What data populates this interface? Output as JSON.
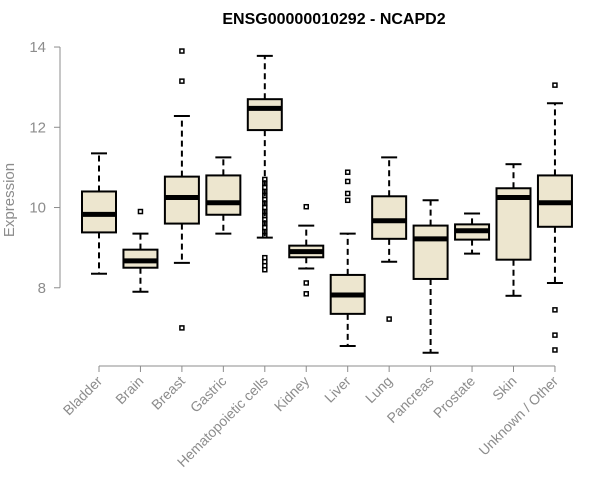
{
  "chart_data": {
    "type": "boxplot",
    "title": "ENSG00000010292 - NCAPD2",
    "xlabel": "",
    "ylabel": "Expression",
    "ylim": [
      6.2,
      14.2
    ],
    "yticks": [
      8,
      10,
      12,
      14
    ],
    "box_color": "#ede6cf",
    "categories": [
      "Bladder",
      "Brain",
      "Breast",
      "Gastric",
      "Hematopoietic cells",
      "Kidney",
      "Liver",
      "Lung",
      "Pancreas",
      "Prostate",
      "Skin",
      "Unknown / Other"
    ],
    "boxes": [
      {
        "name": "Bladder",
        "lower_whisker": 8.35,
        "q1": 9.38,
        "median": 9.83,
        "q3": 10.4,
        "upper_whisker": 11.35,
        "outliers": []
      },
      {
        "name": "Brain",
        "lower_whisker": 7.9,
        "q1": 8.5,
        "median": 8.67,
        "q3": 8.95,
        "upper_whisker": 9.35,
        "outliers": [
          9.9
        ]
      },
      {
        "name": "Breast",
        "lower_whisker": 8.62,
        "q1": 9.6,
        "median": 10.25,
        "q3": 10.77,
        "upper_whisker": 12.28,
        "outliers": [
          13.9,
          13.15,
          7.0
        ]
      },
      {
        "name": "Gastric",
        "lower_whisker": 9.35,
        "q1": 9.82,
        "median": 10.12,
        "q3": 10.8,
        "upper_whisker": 11.25,
        "outliers": []
      },
      {
        "name": "Hematopoietic cells",
        "lower_whisker": 9.25,
        "q1": 11.93,
        "median": 12.47,
        "q3": 12.7,
        "upper_whisker": 13.78,
        "outliers": [
          10.7,
          10.6,
          10.5,
          10.4,
          10.3,
          10.2,
          10.1,
          10.0,
          9.9,
          9.8,
          9.7,
          9.6,
          9.5,
          9.4,
          9.3,
          8.75,
          8.65,
          8.55,
          8.45
        ]
      },
      {
        "name": "Kidney",
        "lower_whisker": 8.48,
        "q1": 8.76,
        "median": 8.9,
        "q3": 9.05,
        "upper_whisker": 9.55,
        "outliers": [
          10.02,
          8.12,
          7.85
        ]
      },
      {
        "name": "Liver",
        "lower_whisker": 6.55,
        "q1": 7.35,
        "median": 7.82,
        "q3": 8.32,
        "upper_whisker": 9.35,
        "outliers": [
          10.88,
          10.65,
          10.35,
          10.18
        ]
      },
      {
        "name": "Lung",
        "lower_whisker": 8.65,
        "q1": 9.22,
        "median": 9.67,
        "q3": 10.28,
        "upper_whisker": 11.25,
        "outliers": [
          7.22
        ]
      },
      {
        "name": "Pancreas",
        "lower_whisker": 6.38,
        "q1": 8.22,
        "median": 9.22,
        "q3": 9.55,
        "upper_whisker": 10.18,
        "outliers": []
      },
      {
        "name": "Prostate",
        "lower_whisker": 8.85,
        "q1": 9.2,
        "median": 9.42,
        "q3": 9.58,
        "upper_whisker": 9.85,
        "outliers": []
      },
      {
        "name": "Skin",
        "lower_whisker": 7.8,
        "q1": 8.7,
        "median": 10.25,
        "q3": 10.48,
        "upper_whisker": 11.08,
        "outliers": []
      },
      {
        "name": "Unknown / Other",
        "lower_whisker": 8.12,
        "q1": 9.52,
        "median": 10.12,
        "q3": 10.8,
        "upper_whisker": 12.6,
        "outliers": [
          13.05,
          7.45,
          6.82,
          6.45
        ]
      }
    ]
  }
}
